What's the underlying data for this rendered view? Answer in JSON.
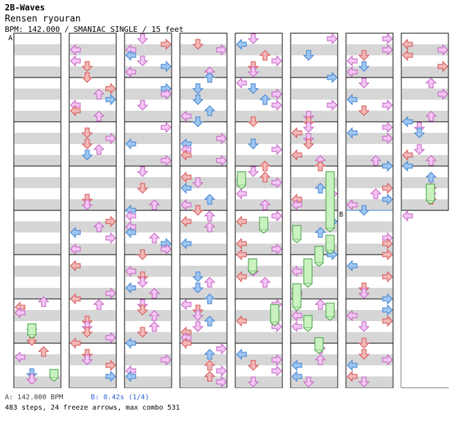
{
  "header": {
    "title": "2B-Waves"
  },
  "song": {
    "title": "Rensen ryouran",
    "info": "BPM: 142.000 / SMANIAC SINGLE / 15 feet"
  },
  "markers": {
    "a": "A",
    "b": "B"
  },
  "footer": {
    "bpm_label": "A: 142.000 BPM",
    "stop_label": "B: 0.42s (1/4)",
    "stats": "483 steps, 24 freeze arrows, max combo 531"
  },
  "colors": {
    "red": "#f2b8b8",
    "red_stroke": "#d44c4c",
    "blue": "#9fc6f2",
    "blue_stroke": "#3a7fd0",
    "pink": "#f4c6f4",
    "pink_stroke": "#c05bc0",
    "green": "#c9f2c0",
    "green_stroke": "#3c9a3c",
    "band": "#d6d6d6",
    "marker_line": "#3a7fd0"
  }
}
